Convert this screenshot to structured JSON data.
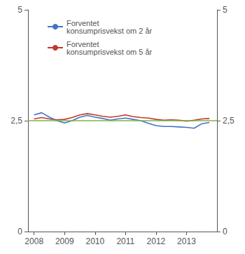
{
  "chart_data": {
    "type": "line",
    "title": "",
    "x": [
      2008.0,
      2008.25,
      2008.5,
      2008.75,
      2009.0,
      2009.25,
      2009.5,
      2009.75,
      2010.0,
      2010.25,
      2010.5,
      2010.75,
      2011.0,
      2011.25,
      2011.5,
      2011.75,
      2012.0,
      2012.25,
      2012.5,
      2012.75,
      2013.0,
      2013.25,
      2013.5,
      2013.75
    ],
    "series": [
      {
        "name": "Forventet\nkonsumprisvekst om 2 år",
        "color": "#4472c4",
        "values": [
          2.63,
          2.68,
          2.58,
          2.5,
          2.45,
          2.5,
          2.58,
          2.62,
          2.58,
          2.55,
          2.51,
          2.54,
          2.56,
          2.53,
          2.5,
          2.44,
          2.39,
          2.37,
          2.37,
          2.36,
          2.35,
          2.33,
          2.43,
          2.46
        ]
      },
      {
        "name": "Forventet\nkonsumprisvekst om 5 år",
        "color": "#c0392b",
        "values": [
          2.54,
          2.57,
          2.54,
          2.52,
          2.53,
          2.57,
          2.63,
          2.66,
          2.63,
          2.6,
          2.58,
          2.6,
          2.63,
          2.59,
          2.57,
          2.56,
          2.53,
          2.51,
          2.52,
          2.51,
          2.49,
          2.51,
          2.54,
          2.55
        ]
      }
    ],
    "reference_line": {
      "value": 2.5,
      "color": "#7ab648"
    },
    "xlim": [
      2007.8,
      2014.0
    ],
    "xticks": [
      2008,
      2009,
      2010,
      2011,
      2012,
      2013
    ],
    "ylim": [
      0,
      5
    ],
    "yticks": [
      0,
      {
        "value": 2.5,
        "label": "2,5"
      },
      5
    ],
    "y2lim": [
      0,
      5
    ],
    "y2ticks": [
      0,
      {
        "value": 2.5,
        "label": "2,5"
      },
      5
    ],
    "grid": false,
    "legend": "upper left"
  }
}
